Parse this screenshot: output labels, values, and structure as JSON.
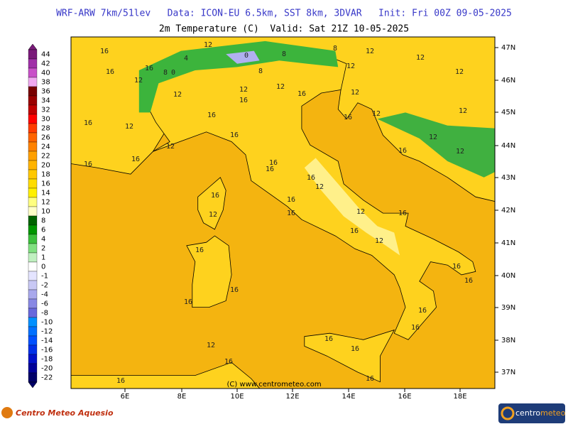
{
  "header": {
    "title": "WRF-ARW 7km/51lev   Data: ICON-EU 6.5km, SST 8km, 3DVAR   Init: Fri 00Z 09-05-2025",
    "subtitle": "2m Temperature (C)  Valid: Sat 21Z 10-05-2025"
  },
  "colorbar": {
    "levels": [
      44,
      42,
      40,
      38,
      36,
      34,
      32,
      30,
      28,
      26,
      24,
      22,
      20,
      18,
      16,
      14,
      12,
      10,
      8,
      6,
      4,
      2,
      1,
      0,
      -1,
      -2,
      -4,
      -6,
      -8,
      -10,
      -12,
      -14,
      -16,
      -18,
      -20,
      -22
    ],
    "colors": [
      "#7a1a7a",
      "#a030a8",
      "#c850c8",
      "#f0a8f0",
      "#780000",
      "#9a0000",
      "#c00000",
      "#ff0000",
      "#ff3c00",
      "#ff6400",
      "#ff8200",
      "#ffa000",
      "#ffb400",
      "#ffc800",
      "#ffdc00",
      "#fff000",
      "#ffff80",
      "#ffffc8",
      "#006400",
      "#009600",
      "#3cc03c",
      "#80e080",
      "#c0f0c0",
      "#ffffff",
      "#e4e4ff",
      "#c8c8f4",
      "#a8a8ec",
      "#8888e4",
      "#6868dc",
      "#0090ff",
      "#0070ff",
      "#0050ff",
      "#0030e8",
      "#0010c8",
      "#000098",
      "#000068"
    ]
  },
  "map": {
    "lat_labels": [
      "47N",
      "46N",
      "45N",
      "44N",
      "43N",
      "42N",
      "41N",
      "40N",
      "39N",
      "38N",
      "37N"
    ],
    "lon_labels": [
      "6E",
      "8E",
      "10E",
      "12E",
      "14E",
      "16E",
      "18E"
    ],
    "contour_labels": [
      16,
      16,
      16,
      12,
      8,
      0,
      4,
      12,
      0,
      8,
      8,
      8,
      12,
      12,
      12,
      12,
      12,
      12,
      12,
      16,
      16,
      16,
      12,
      16,
      12,
      16,
      12,
      16,
      12,
      12,
      16,
      12,
      12,
      16,
      16,
      16,
      16,
      16,
      12,
      16,
      16,
      12,
      12,
      16,
      16,
      12,
      16,
      16,
      16,
      16,
      16,
      16,
      16,
      16,
      16,
      12,
      16,
      16,
      16,
      16
    ],
    "credit": "(C) www.centrometeo.com"
  },
  "footer": {
    "left_logo": "Centro Meteo Aquesio",
    "right_logo_a": "centro",
    "right_logo_b": "meteo"
  }
}
